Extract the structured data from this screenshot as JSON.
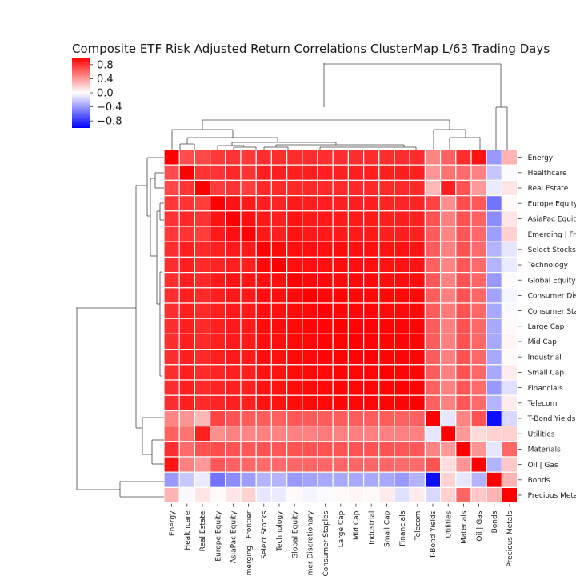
{
  "chart_data": {
    "type": "heatmap",
    "title": "Composite ETF Risk Adjusted Return Correlations ClusterMap L/63 Trading Days",
    "row_labels": [
      "Energy",
      "Healthcare",
      "Real Estate",
      "Europe Equity",
      "AsiaPac Equity",
      "Emerging | Frontier",
      "Select Stocks",
      "Technology",
      "Global Equity",
      "Consumer Discretionary",
      "Consumer Staples",
      "Large Cap",
      "Mid Cap",
      "Industrial",
      "Small Cap",
      "Financials",
      "Telecom",
      "T-Bond Yields",
      "Utilities",
      "Materials",
      "Oil | Gas",
      "Bonds",
      "Precious Metals"
    ],
    "col_labels": [
      "Energy",
      "Healthcare",
      "Real Estate",
      "Europe Equity",
      "AsiaPac Equity",
      "Emerging | Frontier",
      "Select Stocks",
      "Technology",
      "Global Equity",
      "Consumer Discretionary",
      "Consumer Staples",
      "Large Cap",
      "Mid Cap",
      "Industrial",
      "Small Cap",
      "Financials",
      "Telecom",
      "T-Bond Yields",
      "Utilities",
      "Materials",
      "Oil | Gas",
      "Bonds",
      "Precious Metals"
    ],
    "colorbar": {
      "ticks": [
        "0.8",
        "0.4",
        "0.0",
        "−0.4",
        "−0.8"
      ],
      "range": [
        -1.0,
        1.0
      ],
      "low_color": "#0000ff",
      "mid_color": "#ffffff",
      "high_color": "#ff0000"
    },
    "values": [
      [
        1.0,
        0.7,
        0.72,
        0.78,
        0.8,
        0.78,
        0.82,
        0.82,
        0.82,
        0.82,
        0.82,
        0.82,
        0.82,
        0.82,
        0.82,
        0.82,
        0.82,
        0.48,
        0.62,
        0.82,
        0.92,
        -0.4,
        0.3
      ],
      [
        0.7,
        1.0,
        0.8,
        0.8,
        0.84,
        0.8,
        0.88,
        0.88,
        0.88,
        0.88,
        0.88,
        0.88,
        0.88,
        0.88,
        0.88,
        0.88,
        0.88,
        0.42,
        0.55,
        0.58,
        0.5,
        -0.22,
        -0.02
      ],
      [
        0.72,
        0.8,
        1.0,
        0.76,
        0.8,
        0.76,
        0.84,
        0.84,
        0.84,
        0.84,
        0.84,
        0.84,
        0.84,
        0.84,
        0.84,
        0.84,
        0.84,
        0.28,
        0.88,
        0.68,
        0.4,
        -0.08,
        0.1
      ],
      [
        0.78,
        0.8,
        0.76,
        1.0,
        0.92,
        0.9,
        0.88,
        0.86,
        0.9,
        0.88,
        0.88,
        0.88,
        0.88,
        0.88,
        0.86,
        0.86,
        0.86,
        0.74,
        0.44,
        0.7,
        0.66,
        -0.55,
        0.02
      ],
      [
        0.8,
        0.84,
        0.8,
        0.92,
        1.0,
        0.94,
        0.9,
        0.88,
        0.92,
        0.9,
        0.9,
        0.9,
        0.9,
        0.9,
        0.88,
        0.88,
        0.88,
        0.68,
        0.5,
        0.68,
        0.62,
        -0.45,
        0.1
      ],
      [
        0.78,
        0.8,
        0.76,
        0.9,
        0.94,
        1.0,
        0.9,
        0.88,
        0.92,
        0.9,
        0.9,
        0.9,
        0.9,
        0.9,
        0.88,
        0.88,
        0.88,
        0.64,
        0.48,
        0.66,
        0.6,
        -0.38,
        0.18
      ],
      [
        0.82,
        0.88,
        0.84,
        0.88,
        0.9,
        0.9,
        1.0,
        0.96,
        0.94,
        0.94,
        0.94,
        0.95,
        0.94,
        0.94,
        0.93,
        0.93,
        0.93,
        0.64,
        0.5,
        0.68,
        0.58,
        -0.3,
        -0.1
      ],
      [
        0.82,
        0.88,
        0.84,
        0.86,
        0.88,
        0.88,
        0.96,
        1.0,
        0.94,
        0.94,
        0.94,
        0.95,
        0.94,
        0.94,
        0.93,
        0.93,
        0.93,
        0.62,
        0.48,
        0.66,
        0.58,
        -0.3,
        -0.08
      ],
      [
        0.82,
        0.88,
        0.84,
        0.9,
        0.92,
        0.92,
        0.94,
        0.94,
        1.0,
        0.96,
        0.96,
        0.96,
        0.96,
        0.96,
        0.95,
        0.95,
        0.95,
        0.66,
        0.5,
        0.68,
        0.6,
        -0.4,
        0.02
      ],
      [
        0.82,
        0.88,
        0.84,
        0.88,
        0.9,
        0.9,
        0.94,
        0.94,
        0.96,
        1.0,
        0.97,
        0.98,
        0.97,
        0.97,
        0.97,
        0.97,
        0.97,
        0.64,
        0.5,
        0.68,
        0.6,
        -0.36,
        -0.04
      ],
      [
        0.82,
        0.88,
        0.84,
        0.88,
        0.9,
        0.9,
        0.94,
        0.94,
        0.96,
        0.97,
        1.0,
        0.98,
        0.98,
        0.98,
        0.97,
        0.97,
        0.97,
        0.64,
        0.52,
        0.68,
        0.6,
        -0.34,
        -0.02
      ],
      [
        0.82,
        0.88,
        0.84,
        0.88,
        0.9,
        0.9,
        0.95,
        0.95,
        0.96,
        0.98,
        0.98,
        1.0,
        0.99,
        0.99,
        0.98,
        0.98,
        0.98,
        0.64,
        0.5,
        0.68,
        0.6,
        -0.34,
        0.02
      ],
      [
        0.82,
        0.88,
        0.84,
        0.88,
        0.9,
        0.9,
        0.94,
        0.94,
        0.96,
        0.97,
        0.98,
        0.99,
        1.0,
        0.99,
        0.98,
        0.98,
        0.98,
        0.64,
        0.5,
        0.68,
        0.6,
        -0.34,
        0.04
      ],
      [
        0.82,
        0.88,
        0.84,
        0.88,
        0.9,
        0.9,
        0.94,
        0.94,
        0.96,
        0.97,
        0.98,
        0.99,
        0.99,
        1.0,
        0.98,
        0.98,
        0.98,
        0.64,
        0.5,
        0.68,
        0.6,
        -0.34,
        0.02
      ],
      [
        0.82,
        0.88,
        0.84,
        0.86,
        0.88,
        0.88,
        0.93,
        0.93,
        0.95,
        0.97,
        0.97,
        0.98,
        0.98,
        0.98,
        1.0,
        0.98,
        0.98,
        0.64,
        0.5,
        0.68,
        0.6,
        -0.34,
        0.08
      ],
      [
        0.82,
        0.88,
        0.84,
        0.86,
        0.88,
        0.88,
        0.93,
        0.93,
        0.95,
        0.97,
        0.97,
        0.98,
        0.98,
        0.98,
        0.98,
        1.0,
        0.98,
        0.62,
        0.5,
        0.66,
        0.58,
        -0.4,
        -0.12
      ],
      [
        0.82,
        0.88,
        0.84,
        0.86,
        0.88,
        0.88,
        0.93,
        0.93,
        0.95,
        0.97,
        0.97,
        0.98,
        0.98,
        0.98,
        0.98,
        0.98,
        1.0,
        0.62,
        0.5,
        0.66,
        0.58,
        -0.3,
        0.08
      ],
      [
        0.48,
        0.42,
        0.28,
        0.74,
        0.68,
        0.64,
        0.64,
        0.62,
        0.66,
        0.64,
        0.64,
        0.64,
        0.64,
        0.64,
        0.64,
        0.62,
        0.62,
        1.0,
        -0.1,
        0.48,
        0.68,
        -0.95,
        -0.15
      ],
      [
        0.62,
        0.55,
        0.88,
        0.44,
        0.5,
        0.48,
        0.5,
        0.48,
        0.5,
        0.5,
        0.52,
        0.5,
        0.5,
        0.5,
        0.5,
        0.5,
        0.5,
        -0.1,
        1.0,
        0.4,
        0.14,
        0.18,
        0.18
      ],
      [
        0.82,
        0.58,
        0.68,
        0.7,
        0.68,
        0.66,
        0.68,
        0.66,
        0.68,
        0.68,
        0.68,
        0.68,
        0.68,
        0.68,
        0.68,
        0.66,
        0.66,
        0.48,
        0.4,
        1.0,
        0.42,
        -0.1,
        0.6
      ],
      [
        0.92,
        0.5,
        0.4,
        0.66,
        0.62,
        0.6,
        0.58,
        0.58,
        0.6,
        0.6,
        0.6,
        0.6,
        0.6,
        0.6,
        0.6,
        0.58,
        0.58,
        0.68,
        0.14,
        0.42,
        1.0,
        -0.3,
        0.22
      ],
      [
        -0.4,
        -0.22,
        -0.08,
        -0.55,
        -0.45,
        -0.38,
        -0.3,
        -0.3,
        -0.4,
        -0.36,
        -0.34,
        -0.34,
        -0.34,
        -0.34,
        -0.34,
        -0.4,
        -0.3,
        -0.95,
        0.18,
        -0.1,
        -0.3,
        1.0,
        0.3
      ],
      [
        0.3,
        -0.02,
        0.1,
        0.02,
        0.1,
        0.18,
        -0.1,
        -0.08,
        0.02,
        -0.04,
        -0.02,
        0.02,
        0.04,
        0.02,
        0.08,
        -0.12,
        0.08,
        -0.15,
        0.18,
        0.6,
        0.22,
        0.3,
        1.0
      ]
    ]
  }
}
